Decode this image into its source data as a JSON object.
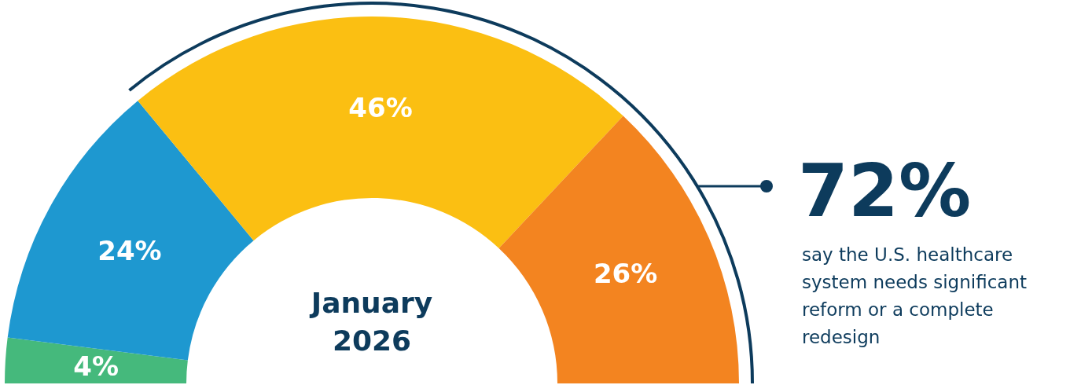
{
  "chart_data": {
    "type": "donut",
    "title": "January 2026",
    "categories": [
      null,
      null,
      null,
      null
    ],
    "values": [
      4,
      24,
      46,
      26
    ],
    "colors": [
      "#45b97c",
      "#1e98d0",
      "#fbbf12",
      "#f38420"
    ],
    "value_labels": [
      "4%",
      "24%",
      "46%",
      "26%"
    ],
    "annotations": [
      "72%",
      "say the U.S. healthcare system needs significant reform or a complete redesign"
    ]
  }
}
